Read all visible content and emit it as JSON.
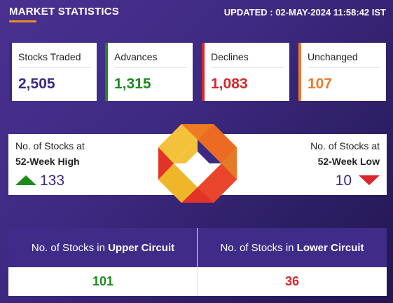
{
  "header": {
    "title": "MARKET STATISTICS",
    "updated": "UPDATED : 02-MAY-2024 11:58:42 IST"
  },
  "stats": [
    {
      "label": "Stocks Traded",
      "value": "2,505",
      "color": "#3c2a80"
    },
    {
      "label": "Advances",
      "value": "1,315",
      "color": "#1e8a1e"
    },
    {
      "label": "Declines",
      "value": "1,083",
      "color": "#d9262c"
    },
    {
      "label": "Unchanged",
      "value": "107",
      "color": "#ec7a2a"
    }
  ],
  "week52": {
    "high_label_line1": "No. of Stocks at",
    "high_label_line2": "52-Week High",
    "high_value": "133",
    "high_icon": "triangle-up-icon",
    "low_label_line1": "No. of Stocks at",
    "low_label_line2": "52-Week Low",
    "low_value": "10",
    "low_icon": "triangle-down-icon"
  },
  "circuit": {
    "upper_label_prefix": "No. of Stocks in ",
    "upper_label_bold": "Upper Circuit",
    "upper_value": "101",
    "lower_label_prefix": "No. of Stocks in ",
    "lower_label_bold": "Lower Circuit",
    "lower_value": "36"
  },
  "colors": {
    "background": "#3d2a82",
    "accent": "#f08a24",
    "up": "#1e8a1e",
    "down": "#d9262c"
  }
}
